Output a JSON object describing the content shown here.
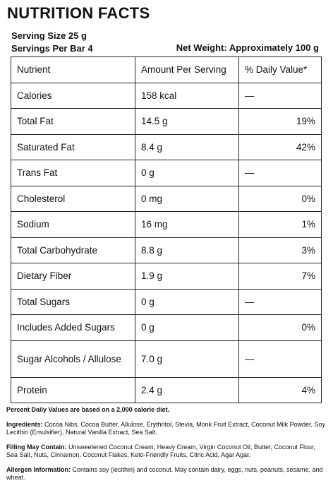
{
  "title": "NUTRITION FACTS",
  "serving_size": "Serving Size 25 g",
  "servings_per_bar": "Servings Per Bar 4",
  "net_weight": "Net Weight: Approximately 100 g",
  "table": {
    "headers": [
      "Nutrient",
      "Amount Per Serving",
      "% Daily Value*"
    ],
    "rows": [
      {
        "nutrient": "Calories",
        "amount": "158 kcal",
        "dv": "—"
      },
      {
        "nutrient": "Total Fat",
        "amount": "14.5 g",
        "dv": "19%"
      },
      {
        "nutrient": "Saturated Fat",
        "amount": "8.4 g",
        "dv": "42%"
      },
      {
        "nutrient": "Trans Fat",
        "amount": "0 g",
        "dv": "—"
      },
      {
        "nutrient": "Cholesterol",
        "amount": "0 mg",
        "dv": "0%"
      },
      {
        "nutrient": "Sodium",
        "amount": "16 mg",
        "dv": "1%"
      },
      {
        "nutrient": "Total Carbohydrate",
        "amount": "8.8 g",
        "dv": "3%"
      },
      {
        "nutrient": "Dietary Fiber",
        "amount": "1.9 g",
        "dv": "7%"
      },
      {
        "nutrient": "Total Sugars",
        "amount": "0 g",
        "dv": "—"
      },
      {
        "nutrient": "Includes Added Sugars",
        "amount": "0 g",
        "dv": "0%"
      },
      {
        "nutrient": "Sugar Alcohols / Allulose",
        "amount": "7.0 g",
        "dv": "—"
      },
      {
        "nutrient": "Protein",
        "amount": "2.4 g",
        "dv": "4%"
      }
    ]
  },
  "footnote": "Percent Daily Values are based on a 2,000 calorie diet.",
  "ingredients": {
    "label": "Ingredients:",
    "text": " Cocoa Nibs, Cocoa Butter, Allulose, Erythritol, Stevia, Monk Fruit Extract, Coconut Milk Powder, Soy Lecithin (Emulsifier), Natural Vanilla Extract, Sea Salt."
  },
  "filling": {
    "label": "Filling May Contain:",
    "text": " Unsweetened Coconut Cream, Heavy Cream, Virgin Coconut Oil, Butter, Coconut Flour, Sea Salt, Nuts, Cinnamon, Coconut Flakes, Keto-Friendly Fruits, Citric Acid, Agar Agar."
  },
  "allergen": {
    "label": "Allergen Information:",
    "text": " Contains soy (lecithin) and coconut. May contain dairy, eggs, nuts, peanuts, sesame, and wheat."
  }
}
